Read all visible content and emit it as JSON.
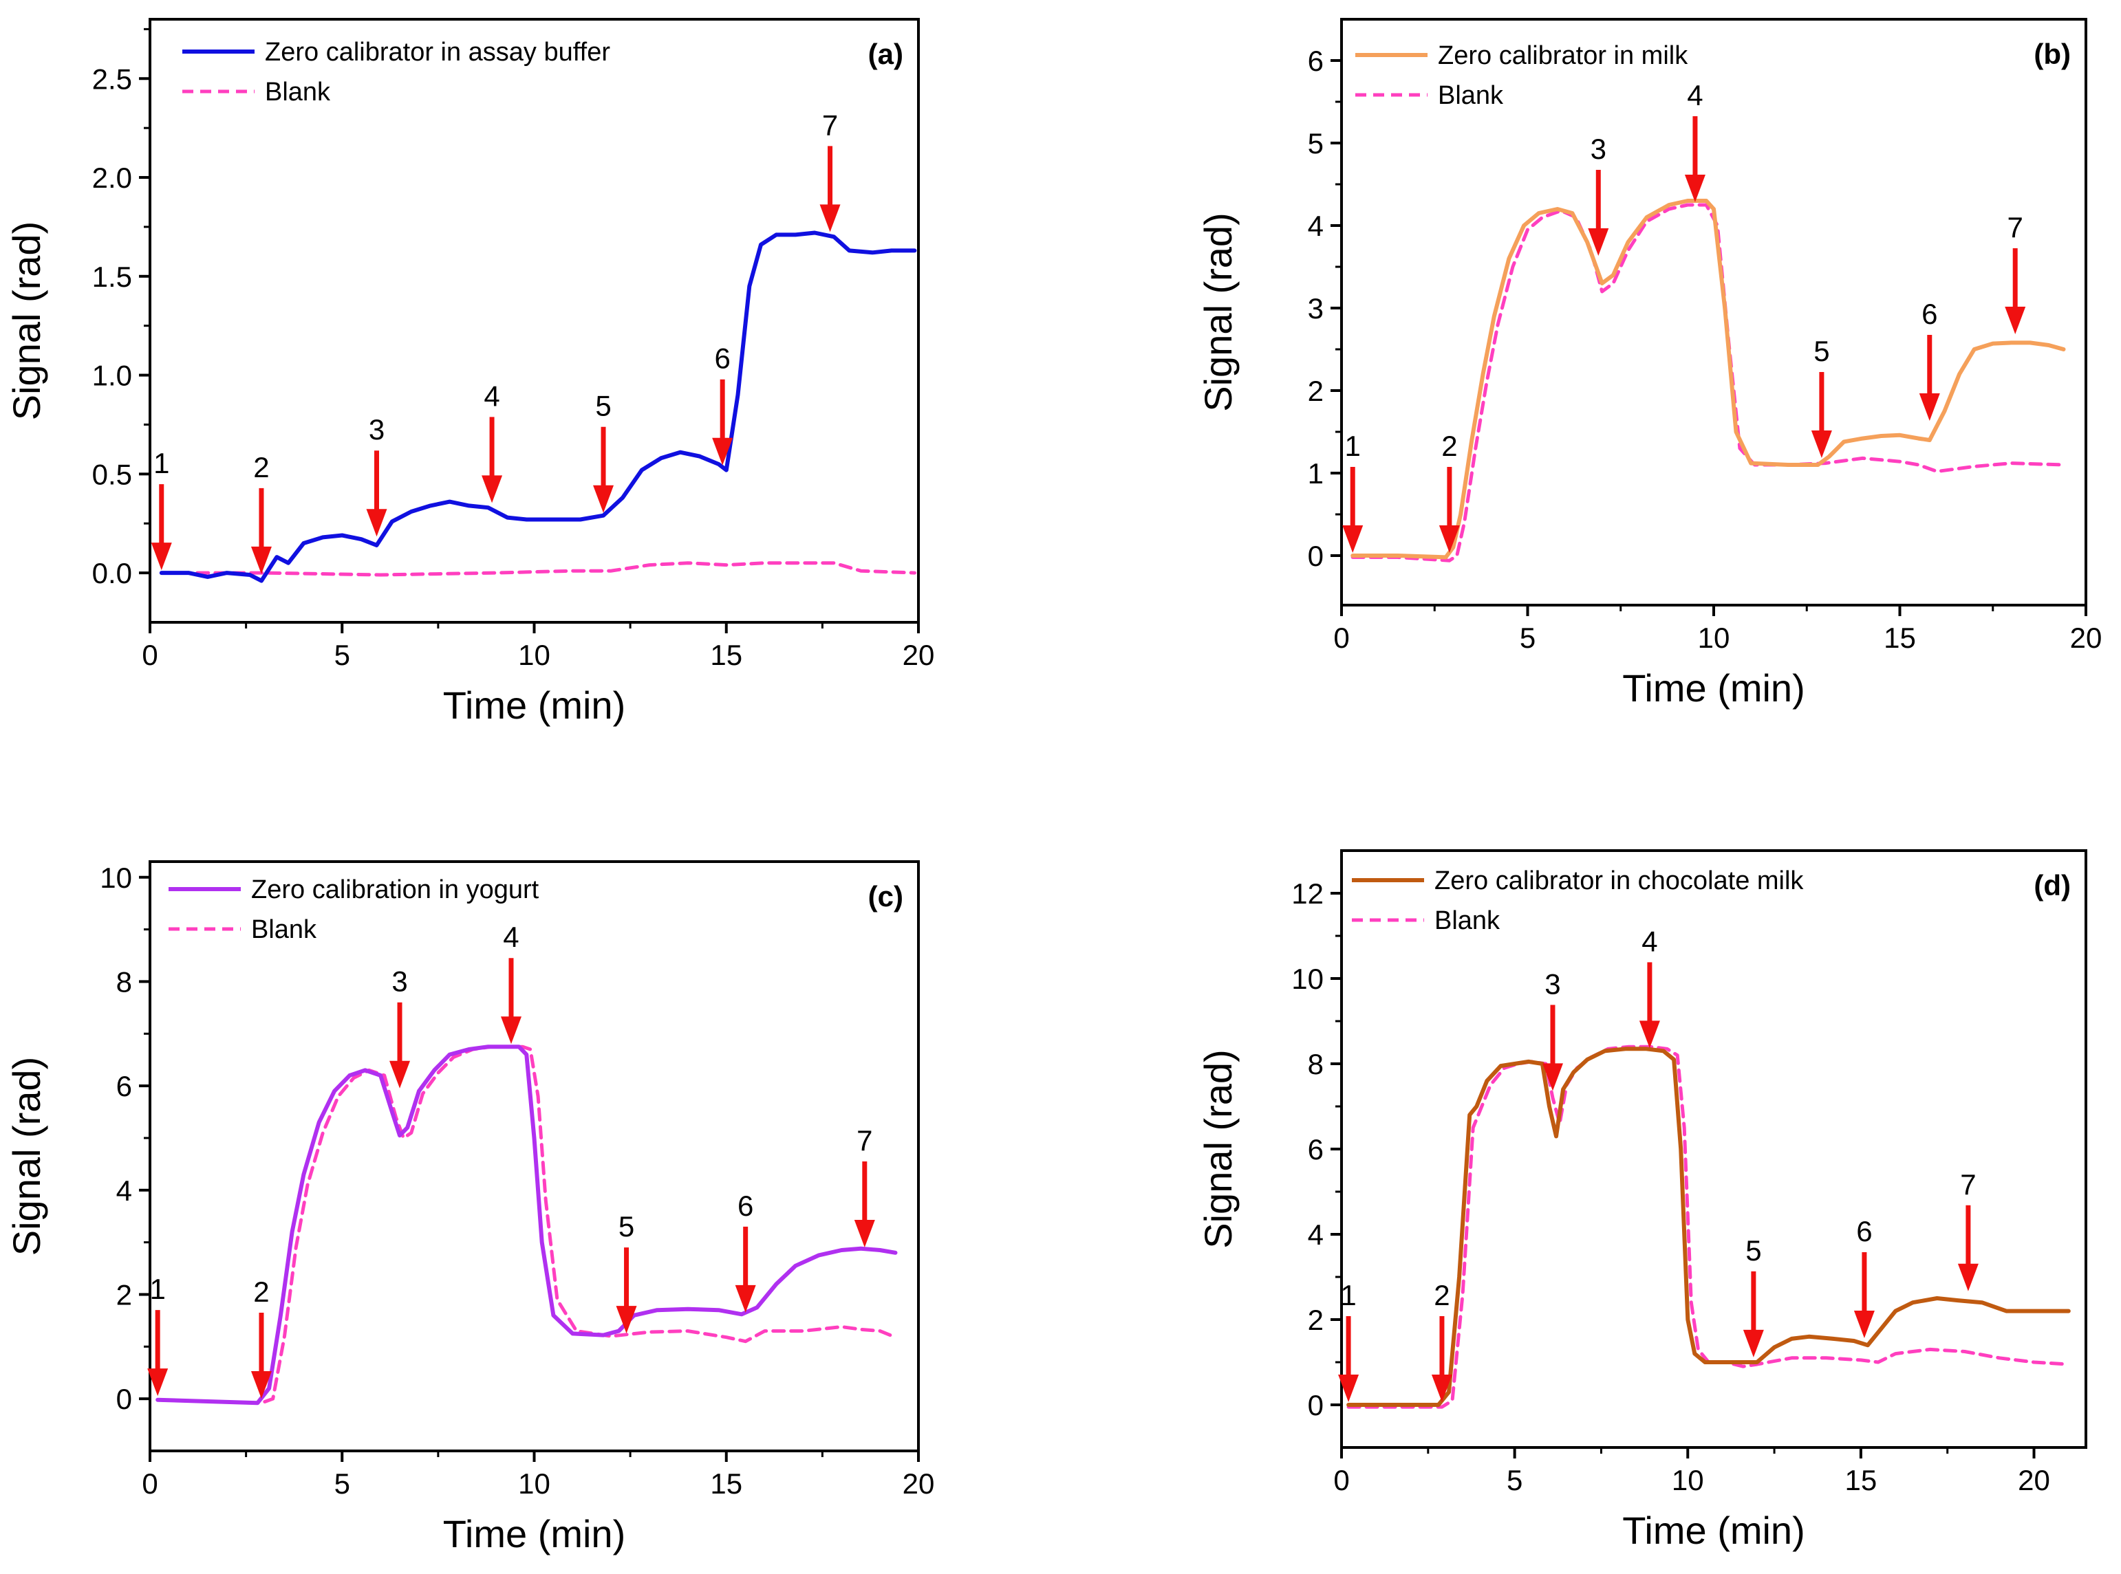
{
  "figure": {
    "colors": {
      "blank": "#ff3fbf",
      "arrow": "#f01010",
      "axis": "#000000"
    }
  },
  "chart_data": [
    {
      "panel": "(a)",
      "type": "line",
      "xlabel": "Time (min)",
      "ylabel": "Signal (rad)",
      "xlim": [
        0,
        20
      ],
      "ylim": [
        -0.25,
        2.8
      ],
      "xticks": [
        0,
        5,
        10,
        15,
        20
      ],
      "yticks": [
        0.0,
        0.5,
        1.0,
        1.5,
        2.0,
        2.5
      ],
      "ytick_labels": [
        "0.0",
        "0.5",
        "1.0",
        "1.5",
        "2.0",
        "2.5"
      ],
      "legend_position": "top-left",
      "series": [
        {
          "name": "Zero calibrator in assay buffer",
          "color": "#1010e0",
          "style": "solid",
          "x": [
            0.3,
            1.0,
            1.5,
            2.0,
            2.6,
            2.9,
            3.1,
            3.3,
            3.6,
            4.0,
            4.5,
            5.0,
            5.5,
            5.9,
            6.3,
            6.8,
            7.3,
            7.8,
            8.3,
            8.8,
            9.3,
            9.8,
            10.5,
            11.2,
            11.8,
            12.3,
            12.8,
            13.3,
            13.8,
            14.3,
            14.8,
            15.0,
            15.3,
            15.6,
            15.9,
            16.3,
            16.8,
            17.3,
            17.8,
            18.2,
            18.8,
            19.3,
            19.9
          ],
          "y": [
            0.0,
            0.0,
            -0.02,
            0.0,
            -0.01,
            -0.04,
            0.02,
            0.08,
            0.05,
            0.15,
            0.18,
            0.19,
            0.17,
            0.14,
            0.26,
            0.31,
            0.34,
            0.36,
            0.34,
            0.33,
            0.28,
            0.27,
            0.27,
            0.27,
            0.29,
            0.38,
            0.52,
            0.58,
            0.61,
            0.59,
            0.55,
            0.52,
            0.9,
            1.45,
            1.66,
            1.71,
            1.71,
            1.72,
            1.7,
            1.63,
            1.62,
            1.63,
            1.63
          ]
        },
        {
          "name": "Blank",
          "color": "#ff3fbf",
          "style": "dashed",
          "x": [
            0.3,
            3.0,
            6.0,
            9.0,
            11.0,
            12.0,
            13.0,
            14.0,
            15.0,
            16.0,
            17.0,
            17.8,
            18.5,
            19.9
          ],
          "y": [
            0.0,
            0.0,
            -0.01,
            0.0,
            0.01,
            0.01,
            0.04,
            0.05,
            0.04,
            0.05,
            0.05,
            0.05,
            0.01,
            0.0
          ]
        }
      ],
      "markers": [
        {
          "label": "1",
          "x": 0.3,
          "y": 0.0
        },
        {
          "label": "2",
          "x": 2.9,
          "y": -0.02
        },
        {
          "label": "3",
          "x": 5.9,
          "y": 0.17
        },
        {
          "label": "4",
          "x": 8.9,
          "y": 0.34
        },
        {
          "label": "5",
          "x": 11.8,
          "y": 0.29
        },
        {
          "label": "6",
          "x": 14.9,
          "y": 0.53
        },
        {
          "label": "7",
          "x": 17.7,
          "y": 1.71
        }
      ]
    },
    {
      "panel": "(b)",
      "type": "line",
      "xlabel": "Time (min)",
      "ylabel": "Signal (rad)",
      "xlim": [
        0,
        20
      ],
      "ylim": [
        -0.6,
        6.5
      ],
      "xticks": [
        0,
        5,
        10,
        15,
        20
      ],
      "yticks": [
        0,
        1,
        2,
        3,
        4,
        5,
        6
      ],
      "ytick_labels": [
        "0",
        "1",
        "2",
        "3",
        "4",
        "5",
        "6"
      ],
      "legend_position": "top-left",
      "series": [
        {
          "name": "Zero calibrator in milk",
          "color": "#f5a05a",
          "style": "solid",
          "x": [
            0.3,
            1.5,
            2.8,
            3.0,
            3.2,
            3.5,
            3.8,
            4.1,
            4.5,
            4.9,
            5.3,
            5.8,
            6.2,
            6.6,
            7.0,
            7.3,
            7.7,
            8.2,
            8.8,
            9.3,
            9.8,
            10.0,
            10.3,
            10.6,
            11.0,
            12.0,
            12.8,
            13.1,
            13.5,
            14.0,
            14.5,
            15.0,
            15.5,
            15.8,
            16.2,
            16.6,
            17.0,
            17.5,
            18.0,
            18.5,
            19.0,
            19.4
          ],
          "y": [
            0.0,
            0.0,
            -0.02,
            0.1,
            0.5,
            1.4,
            2.2,
            2.9,
            3.6,
            4.0,
            4.15,
            4.2,
            4.15,
            3.8,
            3.3,
            3.4,
            3.8,
            4.1,
            4.25,
            4.3,
            4.3,
            4.2,
            3.0,
            1.5,
            1.12,
            1.1,
            1.1,
            1.2,
            1.38,
            1.42,
            1.45,
            1.46,
            1.42,
            1.4,
            1.75,
            2.2,
            2.5,
            2.57,
            2.58,
            2.58,
            2.55,
            2.5
          ]
        },
        {
          "name": "Blank",
          "color": "#ff3fbf",
          "style": "dashed",
          "x": [
            0.3,
            1.5,
            2.9,
            3.1,
            3.3,
            3.6,
            3.9,
            4.2,
            4.6,
            5.0,
            5.4,
            5.9,
            6.3,
            6.7,
            7.0,
            7.3,
            7.7,
            8.2,
            8.8,
            9.3,
            9.8,
            10.1,
            10.4,
            10.7,
            11.1,
            12.0,
            13.0,
            14.0,
            15.0,
            15.5,
            16.0,
            16.5,
            17.0,
            18.0,
            19.4
          ],
          "y": [
            -0.02,
            -0.02,
            -0.06,
            0.0,
            0.4,
            1.3,
            2.1,
            2.8,
            3.5,
            3.95,
            4.1,
            4.18,
            4.1,
            3.7,
            3.2,
            3.3,
            3.7,
            4.05,
            4.2,
            4.25,
            4.25,
            4.0,
            2.6,
            1.3,
            1.1,
            1.1,
            1.12,
            1.18,
            1.14,
            1.1,
            1.02,
            1.05,
            1.08,
            1.12,
            1.1
          ]
        }
      ],
      "markers": [
        {
          "label": "1",
          "x": 0.3,
          "y": 0.0
        },
        {
          "label": "2",
          "x": 2.9,
          "y": 0.0
        },
        {
          "label": "3",
          "x": 6.9,
          "y": 3.6
        },
        {
          "label": "4",
          "x": 9.5,
          "y": 4.25
        },
        {
          "label": "5",
          "x": 12.9,
          "y": 1.15
        },
        {
          "label": "6",
          "x": 15.8,
          "y": 1.6
        },
        {
          "label": "7",
          "x": 18.1,
          "y": 2.65
        }
      ]
    },
    {
      "panel": "(c)",
      "type": "line",
      "xlabel": "Time (min)",
      "ylabel": "Signal (rad)",
      "xlim": [
        0,
        20
      ],
      "ylim": [
        -1.0,
        10.3
      ],
      "xticks": [
        0,
        5,
        10,
        15,
        20
      ],
      "yticks": [
        0,
        2,
        4,
        6,
        8,
        10
      ],
      "ytick_labels": [
        "0",
        "2",
        "4",
        "6",
        "8",
        "10"
      ],
      "legend_position": "top-left",
      "series": [
        {
          "name": "Zero calibration in yogurt",
          "color": "#b030f0",
          "style": "solid",
          "x": [
            0.2,
            1.5,
            2.8,
            3.1,
            3.4,
            3.7,
            4.0,
            4.4,
            4.8,
            5.2,
            5.6,
            6.0,
            6.3,
            6.5,
            6.7,
            7.0,
            7.4,
            7.8,
            8.3,
            8.8,
            9.2,
            9.6,
            9.8,
            10.0,
            10.2,
            10.5,
            11.0,
            11.8,
            12.2,
            12.6,
            13.2,
            14.0,
            14.8,
            15.4,
            15.8,
            16.3,
            16.8,
            17.4,
            18.0,
            18.5,
            19.0,
            19.4
          ],
          "y": [
            -0.02,
            -0.05,
            -0.08,
            0.2,
            1.6,
            3.2,
            4.3,
            5.3,
            5.9,
            6.2,
            6.3,
            6.2,
            5.5,
            5.05,
            5.2,
            5.9,
            6.3,
            6.6,
            6.7,
            6.75,
            6.75,
            6.75,
            6.6,
            5.0,
            3.0,
            1.6,
            1.25,
            1.22,
            1.3,
            1.6,
            1.7,
            1.72,
            1.7,
            1.62,
            1.75,
            2.2,
            2.55,
            2.75,
            2.85,
            2.88,
            2.85,
            2.8
          ]
        },
        {
          "name": "Blank",
          "color": "#ff3fbf",
          "style": "dashed",
          "x": [
            0.2,
            1.5,
            2.9,
            3.2,
            3.5,
            3.8,
            4.1,
            4.5,
            4.9,
            5.3,
            5.7,
            6.1,
            6.4,
            6.6,
            6.8,
            7.1,
            7.5,
            7.9,
            8.4,
            8.9,
            9.3,
            9.7,
            9.9,
            10.1,
            10.3,
            10.6,
            11.1,
            12.0,
            13.0,
            14.0,
            15.0,
            15.5,
            16.0,
            17.0,
            18.0,
            18.5,
            19.0,
            19.4
          ],
          "y": [
            -0.02,
            -0.05,
            -0.08,
            0.0,
            1.2,
            2.9,
            4.1,
            5.1,
            5.8,
            6.15,
            6.3,
            6.2,
            5.4,
            5.0,
            5.1,
            5.85,
            6.25,
            6.55,
            6.7,
            6.75,
            6.75,
            6.75,
            6.7,
            5.8,
            3.8,
            1.9,
            1.3,
            1.2,
            1.28,
            1.3,
            1.18,
            1.1,
            1.3,
            1.3,
            1.38,
            1.33,
            1.3,
            1.18
          ]
        }
      ],
      "markers": [
        {
          "label": "1",
          "x": 0.2,
          "y": 0.0
        },
        {
          "label": "2",
          "x": 2.9,
          "y": -0.05
        },
        {
          "label": "3",
          "x": 6.5,
          "y": 5.9
        },
        {
          "label": "4",
          "x": 9.4,
          "y": 6.75
        },
        {
          "label": "5",
          "x": 12.4,
          "y": 1.2
        },
        {
          "label": "6",
          "x": 15.5,
          "y": 1.6
        },
        {
          "label": "7",
          "x": 18.6,
          "y": 2.85
        }
      ]
    },
    {
      "panel": "(d)",
      "type": "line",
      "xlabel": "Time (min)",
      "ylabel": "Signal (rad)",
      "xlim": [
        0,
        21.5
      ],
      "ylim": [
        -1.0,
        13.0
      ],
      "xticks": [
        0,
        5,
        10,
        15,
        20
      ],
      "yticks": [
        0,
        2,
        4,
        6,
        8,
        10,
        12
      ],
      "ytick_labels": [
        "0",
        "2",
        "4",
        "6",
        "8",
        "10",
        "12"
      ],
      "legend_position": "top-left",
      "series": [
        {
          "name": "Zero calibrator in chocolate milk",
          "color": "#c05a10",
          "style": "solid",
          "x": [
            0.2,
            1.5,
            2.8,
            3.1,
            3.4,
            3.7,
            3.9,
            4.2,
            4.6,
            5.0,
            5.4,
            5.8,
            6.0,
            6.2,
            6.4,
            6.7,
            7.1,
            7.6,
            8.2,
            8.8,
            9.3,
            9.6,
            9.8,
            10.0,
            10.2,
            10.5,
            11.0,
            11.5,
            12.0,
            12.5,
            13.0,
            13.5,
            14.2,
            14.8,
            15.2,
            15.6,
            16.0,
            16.5,
            17.2,
            17.8,
            18.5,
            19.2,
            20.0,
            21.0
          ],
          "y": [
            0.0,
            0.0,
            0.0,
            0.3,
            3.0,
            6.8,
            7.0,
            7.6,
            7.95,
            8.0,
            8.05,
            8.0,
            7.0,
            6.3,
            7.4,
            7.8,
            8.1,
            8.3,
            8.35,
            8.35,
            8.3,
            8.1,
            6.0,
            2.0,
            1.2,
            1.0,
            1.0,
            1.0,
            1.0,
            1.35,
            1.55,
            1.6,
            1.55,
            1.5,
            1.4,
            1.8,
            2.2,
            2.4,
            2.5,
            2.45,
            2.4,
            2.2,
            2.2,
            2.2
          ]
        },
        {
          "name": "Blank",
          "color": "#ff3fbf",
          "style": "dashed",
          "x": [
            0.2,
            1.5,
            2.9,
            3.2,
            3.5,
            3.8,
            4.0,
            4.3,
            4.7,
            5.1,
            5.5,
            5.9,
            6.1,
            6.3,
            6.5,
            6.8,
            7.2,
            7.7,
            8.3,
            8.9,
            9.4,
            9.7,
            9.9,
            10.1,
            10.3,
            10.6,
            11.1,
            11.6,
            12.0,
            13.0,
            14.0,
            15.0,
            15.5,
            16.0,
            17.0,
            18.0,
            19.0,
            20.0,
            21.0
          ],
          "y": [
            -0.05,
            -0.05,
            -0.05,
            0.1,
            2.6,
            6.5,
            6.9,
            7.5,
            7.9,
            8.0,
            8.05,
            8.0,
            7.2,
            6.6,
            7.5,
            7.9,
            8.15,
            8.35,
            8.4,
            8.4,
            8.35,
            8.2,
            6.5,
            2.4,
            1.3,
            1.0,
            1.0,
            0.9,
            0.95,
            1.1,
            1.1,
            1.05,
            1.0,
            1.2,
            1.3,
            1.25,
            1.1,
            1.0,
            0.95
          ]
        }
      ],
      "markers": [
        {
          "label": "1",
          "x": 0.2,
          "y": 0.0
        },
        {
          "label": "2",
          "x": 2.9,
          "y": 0.0
        },
        {
          "label": "3",
          "x": 6.1,
          "y": 7.3
        },
        {
          "label": "4",
          "x": 8.9,
          "y": 8.3
        },
        {
          "label": "5",
          "x": 11.9,
          "y": 1.05
        },
        {
          "label": "6",
          "x": 15.1,
          "y": 1.5
        },
        {
          "label": "7",
          "x": 18.1,
          "y": 2.6
        }
      ]
    }
  ]
}
